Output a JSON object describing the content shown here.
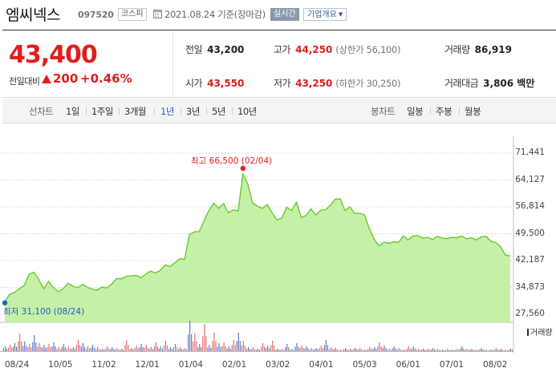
{
  "header": {
    "name": "엠씨넥스",
    "code": "097520",
    "market": "코스피",
    "date_text": "2021.08.24 기준(장마감)",
    "realtime_label": "실시간",
    "company_info_label": "기업개요"
  },
  "summary": {
    "price": "43,400",
    "change_label": "전일대비",
    "change_value": "200",
    "change_pct": "+0.46%",
    "prev_close": {
      "label": "전일",
      "value": "43,200"
    },
    "high": {
      "label": "고가",
      "value": "44,250",
      "sub": "(상한가 56,100)"
    },
    "volume": {
      "label": "거래량",
      "value": "86,919"
    },
    "open": {
      "label": "시가",
      "value": "43,550"
    },
    "low": {
      "label": "저가",
      "value": "43,250",
      "sub": "(하한가 30,250)"
    },
    "amount": {
      "label": "거래대금",
      "value": "3,806 백만"
    }
  },
  "periods": {
    "line_label": "선차트",
    "line_items": [
      "1일",
      "1주일",
      "3개월",
      "1년",
      "3년",
      "5년",
      "10년"
    ],
    "active": "1년",
    "candle_label": "봉차트",
    "candle_items": [
      "일봉",
      "주봉",
      "월봉"
    ]
  },
  "colors": {
    "up": "#e11d1d",
    "down": "#1d5fc0",
    "fill": "#c6f0a8",
    "line": "#66cc2c",
    "active_tab": "#2a5bd7"
  },
  "chart_data": {
    "type": "area",
    "y_ticks": [
      "71,441",
      "64,127",
      "56,814",
      "49,500",
      "42,187",
      "34,873",
      "27,560"
    ],
    "ylim": [
      27560,
      71441
    ],
    "x_labels": [
      "08/24",
      "10/05",
      "11/02",
      "12/01",
      "01/04",
      "02/01",
      "03/02",
      "04/01",
      "05/03",
      "06/01",
      "07/01",
      "08/02"
    ],
    "high_label": "최고 66,500 (02/04)",
    "low_label": "최저 31,100 (08/24)",
    "volume_legend": "거래량",
    "series": [
      {
        "values": [
          31100,
          33000,
          33500,
          34500,
          35400,
          38500,
          39000,
          37000,
          34500,
          36500,
          34800,
          33700,
          34500,
          36000,
          35200,
          34800,
          35700,
          34900,
          34400,
          34100,
          35000,
          34700,
          35800,
          37300,
          37200,
          37900,
          38000,
          38200,
          37500,
          38500,
          39300,
          38800,
          39500,
          41000,
          40500,
          41600,
          42700,
          42500,
          49300,
          50000,
          50100,
          53100,
          55800,
          57800,
          56400,
          57700,
          55200,
          56000,
          55700,
          65800,
          63000,
          57800,
          57000,
          56400,
          57400,
          55200,
          53200,
          53800,
          56700,
          55800,
          58100,
          53900,
          54500,
          56200,
          54600,
          55900,
          56000,
          57300,
          58900,
          59000,
          55800,
          56800,
          55000,
          55100,
          54600,
          50900,
          48000,
          46200,
          47200,
          46900,
          47300,
          47100,
          48900,
          47800,
          48900,
          49000,
          48300,
          48500,
          47900,
          48800,
          48300,
          48200,
          48500,
          48400,
          48900,
          48100,
          48400,
          47800,
          48600,
          48800,
          47500,
          47100,
          45900,
          43700,
          43400
        ]
      }
    ],
    "volume": [
      6,
      8,
      10,
      22,
      12,
      9,
      20,
      10,
      8,
      9,
      11,
      5,
      9,
      6,
      5,
      14,
      10,
      6,
      8,
      5,
      3,
      6,
      5,
      4,
      3,
      14,
      4,
      7,
      9,
      8,
      5,
      11,
      6,
      13,
      5,
      9,
      5,
      4,
      38,
      22,
      9,
      34,
      8,
      23,
      10,
      11,
      6,
      14,
      23,
      13,
      5,
      5,
      3,
      10,
      7,
      13,
      3,
      3,
      9,
      3,
      10,
      7,
      6,
      4,
      4,
      7,
      14,
      5,
      4,
      2,
      4,
      3,
      4,
      4,
      2,
      5,
      5,
      11,
      7,
      3,
      6,
      4,
      2,
      6,
      6,
      3,
      3,
      3,
      4,
      3,
      2,
      3,
      2,
      3,
      6,
      3,
      3,
      2,
      4,
      2,
      2,
      4,
      3,
      2,
      3
    ]
  }
}
